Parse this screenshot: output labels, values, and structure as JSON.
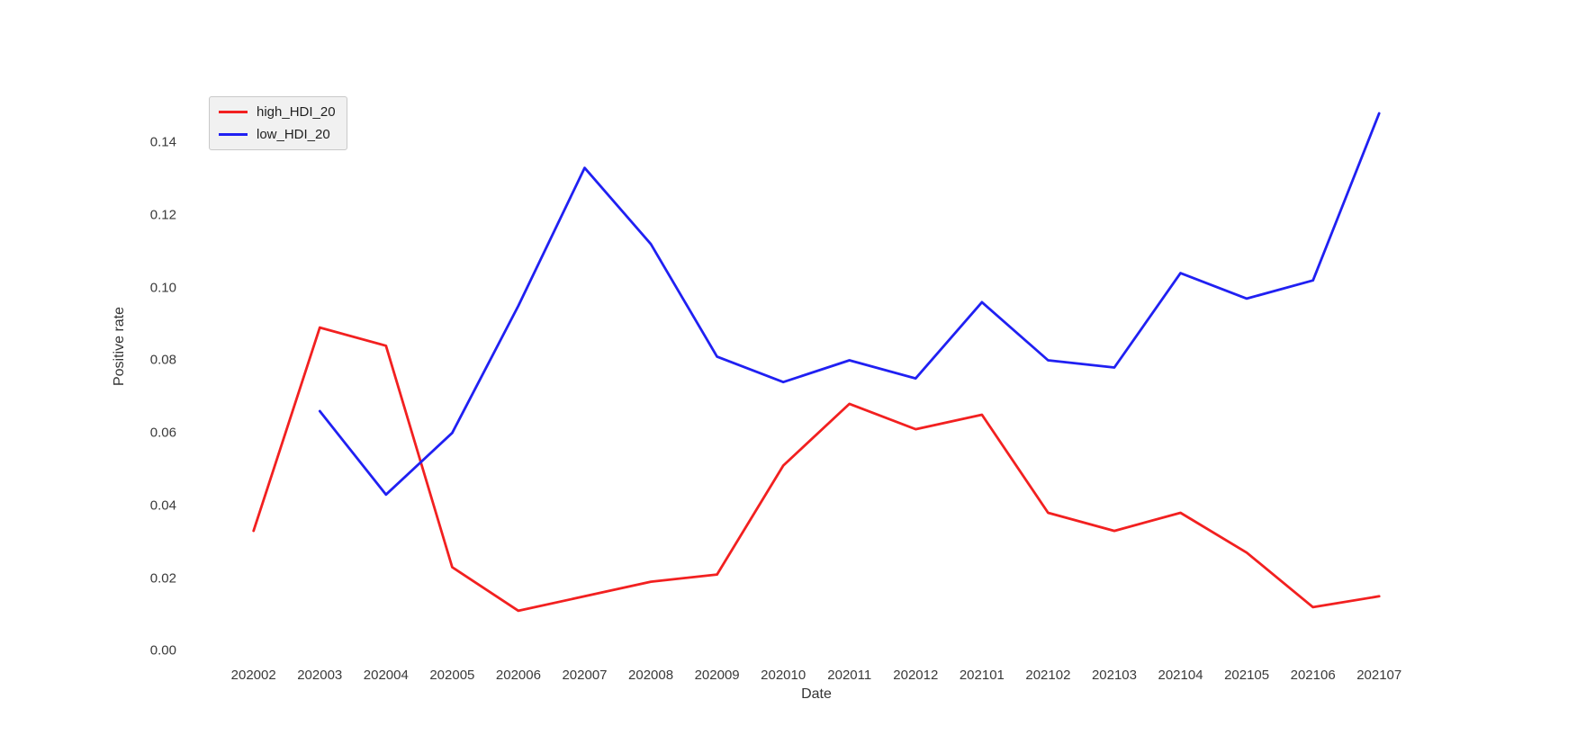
{
  "page": {
    "background": "#ffffff"
  },
  "chart_data": {
    "type": "line",
    "title": "",
    "xlabel": "Date",
    "ylabel": "Positive rate",
    "categories": [
      "202002",
      "202003",
      "202004",
      "202005",
      "202006",
      "202007",
      "202008",
      "202009",
      "202010",
      "202011",
      "202012",
      "202101",
      "202102",
      "202103",
      "202104",
      "202105",
      "202106",
      "202107"
    ],
    "series": [
      {
        "name": "high_HDI_20",
        "color": "#f22020",
        "values": [
          0.033,
          0.089,
          0.084,
          0.023,
          0.011,
          0.015,
          0.019,
          0.021,
          0.051,
          0.068,
          0.061,
          0.065,
          0.038,
          0.033,
          0.038,
          0.027,
          0.012,
          0.015
        ]
      },
      {
        "name": "low_HDI_20",
        "color": "#2020f2",
        "values": [
          null,
          0.066,
          0.043,
          0.06,
          0.095,
          0.133,
          0.112,
          0.081,
          0.074,
          0.08,
          0.075,
          0.096,
          0.08,
          0.078,
          0.104,
          0.097,
          0.102,
          0.148
        ]
      }
    ],
    "yticks": [
      "0.00",
      "0.02",
      "0.04",
      "0.06",
      "0.08",
      "0.10",
      "0.12",
      "0.14"
    ],
    "ylim": [
      0.0,
      0.155
    ],
    "grid": false,
    "legend_position": "upper-left"
  }
}
